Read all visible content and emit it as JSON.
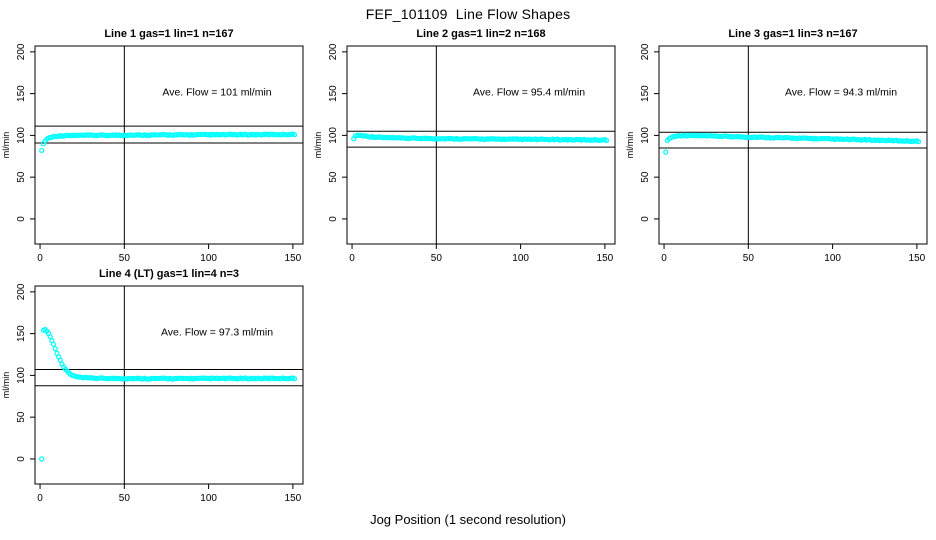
{
  "title": "FEF_101109  Line Flow Shapes",
  "xlabel": "Jog Position (1 second resolution)",
  "point_color": "#00ffff",
  "axis_color": "#000000",
  "chart_data": [
    {
      "type": "scatter",
      "title": "Line 1 gas=1 lin=1 n=167",
      "ylabel": "ml/min",
      "annotation": "Ave. Flow =  101  ml/min",
      "ave_flow": 101,
      "ref_lines_y": [
        111.1,
        90.9
      ],
      "vline_x": 50,
      "xlim": [
        -3,
        156
      ],
      "ylim": [
        -30,
        207
      ],
      "xticks": [
        0,
        50,
        100,
        150
      ],
      "yticks": [
        0,
        50,
        100,
        150,
        200
      ],
      "outliers": [],
      "anchors": [
        [
          1,
          82
        ],
        [
          2,
          90
        ],
        [
          3,
          93.5
        ],
        [
          4,
          95.5
        ],
        [
          5,
          96.8
        ],
        [
          6,
          97.6
        ],
        [
          8,
          98.6
        ],
        [
          10,
          99.2
        ],
        [
          15,
          99.7
        ],
        [
          20,
          99.9
        ],
        [
          30,
          100.1
        ],
        [
          50,
          100.3
        ],
        [
          80,
          100.6
        ],
        [
          120,
          100.9
        ],
        [
          151,
          101.2
        ]
      ]
    },
    {
      "type": "scatter",
      "title": "Line 2 gas=1 lin=2 n=168",
      "ylabel": "ml/min",
      "annotation": "Ave. Flow =  95.4  ml/min",
      "ave_flow": 95.4,
      "ref_lines_y": [
        104.9,
        85.9
      ],
      "vline_x": 50,
      "xlim": [
        -3,
        156
      ],
      "ylim": [
        -30,
        207
      ],
      "xticks": [
        0,
        50,
        100,
        150
      ],
      "yticks": [
        0,
        50,
        100,
        150,
        200
      ],
      "outliers": [],
      "anchors": [
        [
          1,
          96
        ],
        [
          2,
          99.3
        ],
        [
          3,
          100
        ],
        [
          5,
          100
        ],
        [
          8,
          99.2
        ],
        [
          12,
          98.3
        ],
        [
          20,
          97.3
        ],
        [
          30,
          96.7
        ],
        [
          50,
          96.2
        ],
        [
          80,
          95.6
        ],
        [
          120,
          95
        ],
        [
          151,
          94.5
        ]
      ]
    },
    {
      "type": "scatter",
      "title": "Line 3 gas=1 lin=3 n=167",
      "ylabel": "ml/min",
      "annotation": "Ave. Flow =  94.3  ml/min",
      "ave_flow": 94.3,
      "ref_lines_y": [
        103.7,
        84.9
      ],
      "vline_x": 50,
      "xlim": [
        -3,
        156
      ],
      "ylim": [
        -30,
        207
      ],
      "xticks": [
        0,
        50,
        100,
        150
      ],
      "yticks": [
        0,
        50,
        100,
        150,
        200
      ],
      "outliers": [],
      "anchors": [
        [
          1,
          80
        ],
        [
          2,
          94
        ],
        [
          3,
          96.2
        ],
        [
          5,
          98.2
        ],
        [
          8,
          99.6
        ],
        [
          12,
          100
        ],
        [
          20,
          99.6
        ],
        [
          40,
          98.6
        ],
        [
          60,
          97.6
        ],
        [
          80,
          96.6
        ],
        [
          100,
          95.6
        ],
        [
          120,
          94.6
        ],
        [
          135,
          93.8
        ],
        [
          151,
          93
        ]
      ]
    },
    {
      "type": "scatter",
      "title": "Line 4 (LT) gas=1 lin=4 n=3",
      "ylabel": "ml/min",
      "annotation": "Ave. Flow =  97.3  ml/min",
      "ave_flow": 97.3,
      "ref_lines_y": [
        107.0,
        87.6
      ],
      "vline_x": 50,
      "xlim": [
        -3,
        156
      ],
      "ylim": [
        -30,
        207
      ],
      "xticks": [
        0,
        50,
        100,
        150
      ],
      "yticks": [
        0,
        50,
        100,
        150,
        200
      ],
      "outliers": [
        [
          1,
          0
        ]
      ],
      "anchors": [
        [
          2,
          154
        ],
        [
          3,
          155
        ],
        [
          4,
          153
        ],
        [
          5,
          150
        ],
        [
          6,
          146.5
        ],
        [
          7,
          142
        ],
        [
          8,
          137
        ],
        [
          9,
          132
        ],
        [
          10,
          127
        ],
        [
          11,
          122.5
        ],
        [
          12,
          118
        ],
        [
          13,
          114
        ],
        [
          14,
          110.5
        ],
        [
          15,
          107.5
        ],
        [
          16,
          105
        ],
        [
          17,
          103
        ],
        [
          18,
          101.5
        ],
        [
          19,
          100.3
        ],
        [
          20,
          99.3
        ],
        [
          22,
          98.2
        ],
        [
          25,
          97.3
        ],
        [
          30,
          96.8
        ],
        [
          40,
          96.4
        ],
        [
          60,
          96.2
        ],
        [
          90,
          96.2
        ],
        [
          120,
          96.3
        ],
        [
          151,
          96.5
        ]
      ]
    }
  ]
}
